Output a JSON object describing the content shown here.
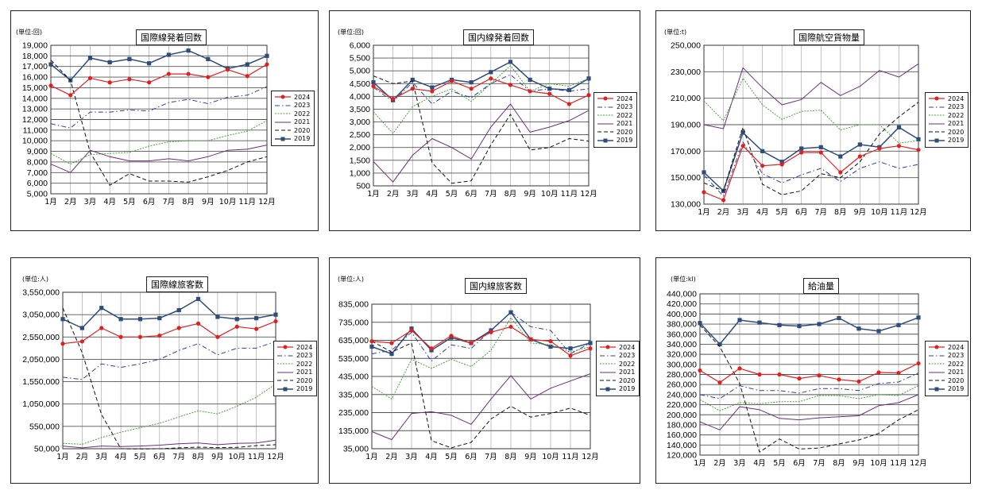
{
  "months": [
    "1月",
    "2月",
    "3月",
    "4月",
    "5月",
    "6月",
    "7月",
    "8月",
    "9月",
    "10月",
    "11月",
    "12月"
  ],
  "legend_labels": [
    "2024",
    "2023",
    "2022",
    "2021",
    "2020",
    "2019"
  ],
  "colors": {
    "2024": "#e02020",
    "2023": "#2b3f9e",
    "2022": "#4aa03c",
    "2021": "#6b2d7a",
    "2020": "#111111",
    "2019": "#2e4d7a"
  },
  "chart_data": [
    {
      "type": "line",
      "title": "国際線発着回数",
      "unit": "(単位:回)",
      "ylim": [
        5000,
        19000
      ],
      "yticks": [
        5000,
        6000,
        7000,
        8000,
        9000,
        10000,
        11000,
        12000,
        13000,
        14000,
        15000,
        16000,
        17000,
        18000,
        19000
      ],
      "series": [
        {
          "name": "2024",
          "values": [
            15200,
            14300,
            15900,
            15500,
            15800,
            15500,
            16300,
            16300,
            16000,
            16700,
            16100,
            17200
          ]
        },
        {
          "name": "2023",
          "values": [
            11600,
            11200,
            12700,
            12700,
            12900,
            12800,
            13600,
            13900,
            13500,
            14100,
            14300,
            15100
          ]
        },
        {
          "name": "2022",
          "values": [
            8800,
            7800,
            8700,
            8800,
            8900,
            9500,
            9900,
            10000,
            10000,
            10500,
            10900,
            11900
          ]
        },
        {
          "name": "2021",
          "values": [
            7800,
            7000,
            9100,
            8500,
            8100,
            8100,
            8300,
            8100,
            8500,
            9100,
            9200,
            9600
          ]
        },
        {
          "name": "2020",
          "values": [
            17600,
            15700,
            8900,
            5800,
            6900,
            6200,
            6200,
            6100,
            6600,
            7200,
            8000,
            8500
          ]
        },
        {
          "name": "2019",
          "values": [
            17200,
            15700,
            17800,
            17400,
            17700,
            17300,
            18100,
            18500,
            17700,
            16800,
            17200,
            18000
          ]
        }
      ]
    },
    {
      "type": "line",
      "title": "国内線発着回数",
      "unit": "(単位:回)",
      "ylim": [
        500,
        6000
      ],
      "yticks": [
        500,
        1000,
        1500,
        2000,
        2500,
        3000,
        3500,
        4000,
        4500,
        5000,
        5500,
        6000
      ],
      "series": [
        {
          "name": "2024",
          "values": [
            4400,
            3900,
            4300,
            4200,
            4600,
            4300,
            4700,
            4450,
            4200,
            4100,
            3700,
            4050
          ]
        },
        {
          "name": "2023",
          "values": [
            4350,
            3800,
            4550,
            3700,
            4200,
            3950,
            4500,
            4850,
            4200,
            4300,
            4200,
            4300
          ]
        },
        {
          "name": "2022",
          "values": [
            3400,
            2550,
            3600,
            4000,
            4300,
            3800,
            4500,
            5200,
            4200,
            4500,
            4400,
            4700
          ]
        },
        {
          "name": "2021",
          "values": [
            1450,
            650,
            1700,
            2350,
            2000,
            1550,
            2800,
            3700,
            2600,
            2800,
            3050,
            3450
          ]
        },
        {
          "name": "2020",
          "values": [
            4800,
            4500,
            4600,
            1400,
            600,
            700,
            2100,
            3300,
            1900,
            2000,
            2350,
            2250
          ]
        },
        {
          "name": "2019",
          "values": [
            4550,
            3850,
            4650,
            4350,
            4650,
            4550,
            4950,
            5350,
            4650,
            4300,
            4250,
            4700
          ]
        }
      ]
    },
    {
      "type": "line",
      "title": "国際航空貨物量",
      "unit": "(単位:t)",
      "ylim": [
        130000,
        250000
      ],
      "yticks": [
        130000,
        150000,
        170000,
        190000,
        210000,
        230000,
        250000
      ],
      "series": [
        {
          "name": "2024",
          "values": [
            139000,
            133000,
            174000,
            159000,
            160000,
            169000,
            169000,
            154000,
            166000,
            172000,
            174000,
            171000
          ]
        },
        {
          "name": "2023",
          "values": [
            152000,
            136000,
            177000,
            153000,
            146000,
            152000,
            157000,
            147000,
            157000,
            162000,
            157000,
            160000
          ]
        },
        {
          "name": "2022",
          "values": [
            208000,
            193000,
            225000,
            205000,
            194000,
            200000,
            201000,
            186000,
            190000,
            190000,
            176000,
            178000
          ]
        },
        {
          "name": "2021",
          "values": [
            190000,
            187000,
            233000,
            218000,
            205000,
            209000,
            222000,
            212000,
            219000,
            231000,
            226000,
            236000
          ]
        },
        {
          "name": "2020",
          "values": [
            146000,
            140000,
            188000,
            145000,
            137000,
            140000,
            153000,
            150000,
            162000,
            183000,
            196000,
            207000
          ]
        },
        {
          "name": "2019",
          "values": [
            154000,
            140000,
            184000,
            170000,
            162000,
            172000,
            173000,
            166000,
            175000,
            173000,
            188000,
            179000
          ]
        }
      ]
    },
    {
      "type": "line",
      "title": "国際線旅客数",
      "unit": "(単位:人)",
      "ylim": [
        50000,
        3550000
      ],
      "yticks": [
        50000,
        550000,
        1050000,
        1550000,
        2050000,
        2550000,
        3050000,
        3550000
      ],
      "series": [
        {
          "name": "2024",
          "values": [
            2400000,
            2450000,
            2750000,
            2550000,
            2550000,
            2580000,
            2750000,
            2850000,
            2550000,
            2780000,
            2730000,
            2900000
          ]
        },
        {
          "name": "2023",
          "values": [
            1650000,
            1600000,
            1950000,
            1870000,
            1950000,
            2050000,
            2250000,
            2400000,
            2150000,
            2300000,
            2300000,
            2450000
          ]
        },
        {
          "name": "2022",
          "values": [
            170000,
            150000,
            300000,
            420000,
            520000,
            620000,
            760000,
            900000,
            830000,
            1000000,
            1200000,
            1500000
          ]
        },
        {
          "name": "2021",
          "values": [
            110000,
            70000,
            110000,
            100000,
            110000,
            130000,
            160000,
            180000,
            140000,
            170000,
            180000,
            240000
          ]
        },
        {
          "name": "2020",
          "values": [
            3200000,
            2200000,
            820000,
            50000,
            45000,
            50000,
            70000,
            85000,
            75000,
            80000,
            120000,
            140000
          ]
        },
        {
          "name": "2019",
          "values": [
            2950000,
            2750000,
            3200000,
            2950000,
            2950000,
            2970000,
            3150000,
            3400000,
            3000000,
            2950000,
            2970000,
            3050000
          ]
        }
      ]
    },
    {
      "type": "line",
      "title": "国内線旅客数",
      "unit": "(単位:人)",
      "ylim": [
        35000,
        835000
      ],
      "yticks": [
        35000,
        135000,
        235000,
        335000,
        435000,
        535000,
        635000,
        735000,
        835000
      ],
      "series": [
        {
          "name": "2024",
          "values": [
            630000,
            620000,
            690000,
            590000,
            660000,
            620000,
            680000,
            710000,
            640000,
            630000,
            550000,
            590000
          ]
        },
        {
          "name": "2023",
          "values": [
            560000,
            580000,
            680000,
            520000,
            610000,
            590000,
            690000,
            790000,
            710000,
            690000,
            560000,
            620000
          ]
        },
        {
          "name": "2022",
          "values": [
            380000,
            310000,
            530000,
            480000,
            530000,
            490000,
            580000,
            760000,
            620000,
            610000,
            570000,
            600000
          ]
        },
        {
          "name": "2021",
          "values": [
            130000,
            85000,
            230000,
            240000,
            220000,
            170000,
            310000,
            440000,
            310000,
            370000,
            410000,
            450000
          ]
        },
        {
          "name": "2020",
          "values": [
            630000,
            570000,
            620000,
            80000,
            40000,
            70000,
            200000,
            270000,
            210000,
            230000,
            260000,
            220000
          ]
        },
        {
          "name": "2019",
          "values": [
            600000,
            560000,
            700000,
            580000,
            650000,
            620000,
            690000,
            790000,
            640000,
            600000,
            590000,
            620000
          ]
        }
      ]
    },
    {
      "type": "line",
      "title": "給油量",
      "unit": "(単位:kl)",
      "ylim": [
        120000,
        440000
      ],
      "yticks": [
        120000,
        140000,
        160000,
        180000,
        200000,
        220000,
        240000,
        260000,
        280000,
        300000,
        320000,
        340000,
        360000,
        380000,
        400000,
        420000,
        440000
      ],
      "series": [
        {
          "name": "2024",
          "values": [
            288000,
            264000,
            292000,
            280000,
            280000,
            272000,
            278000,
            270000,
            266000,
            284000,
            283000,
            302000
          ]
        },
        {
          "name": "2023",
          "values": [
            240000,
            232000,
            258000,
            248000,
            248000,
            243000,
            252000,
            252000,
            248000,
            262000,
            265000,
            283000
          ]
        },
        {
          "name": "2022",
          "values": [
            230000,
            208000,
            224000,
            222000,
            226000,
            226000,
            238000,
            238000,
            232000,
            240000,
            238000,
            258000
          ]
        },
        {
          "name": "2021",
          "values": [
            186000,
            170000,
            216000,
            210000,
            193000,
            190000,
            194000,
            196000,
            198000,
            218000,
            224000,
            240000
          ]
        },
        {
          "name": "2020",
          "values": [
            378000,
            335000,
            262000,
            126000,
            152000,
            132000,
            134000,
            142000,
            150000,
            163000,
            190000,
            210000
          ]
        },
        {
          "name": "2019",
          "values": [
            382000,
            340000,
            388000,
            383000,
            378000,
            376000,
            380000,
            392000,
            371000,
            366000,
            378000,
            393000
          ]
        }
      ]
    }
  ]
}
